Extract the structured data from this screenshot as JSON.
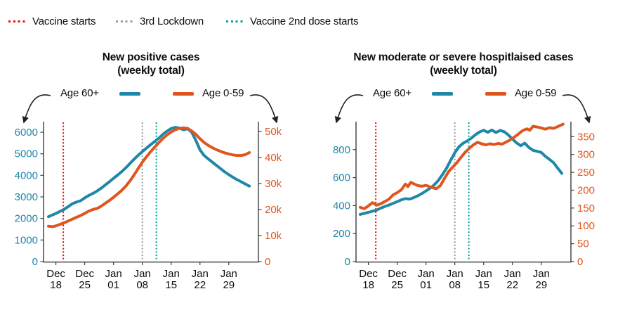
{
  "page": {
    "background": "#ffffff",
    "text_color": "#0d0d0d"
  },
  "top_legend": {
    "items": [
      {
        "label": "Vaccine starts",
        "color": "#e3120b",
        "style": "dotted"
      },
      {
        "label": "3rd Lockdown",
        "color": "#9c9c9c",
        "style": "dotted"
      },
      {
        "label": "Vaccine 2nd dose starts",
        "color": "#00a2a2",
        "style": "dotted"
      }
    ]
  },
  "chart_data": [
    {
      "type": "line",
      "title_line1": "New positive cases",
      "title_line2": "(weekly total)",
      "x_tick_labels": [
        [
          "Dec",
          "18"
        ],
        [
          "Dec",
          "25"
        ],
        [
          "Jan",
          "01"
        ],
        [
          "Jan",
          "08"
        ],
        [
          "Jan",
          "15"
        ],
        [
          "Jan",
          "22"
        ],
        [
          "Jan",
          "29"
        ]
      ],
      "x_tick_days": [
        0,
        7,
        14,
        21,
        28,
        35,
        42
      ],
      "x_domain": [
        -3,
        49.2
      ],
      "left_axis": {
        "color": "#1f87a8",
        "top_value": 6490,
        "ticks": [
          {
            "v": 0,
            "label": "0"
          },
          {
            "v": 1000,
            "label": "1000"
          },
          {
            "v": 2000,
            "label": "2000"
          },
          {
            "v": 3000,
            "label": "3000"
          },
          {
            "v": 4000,
            "label": "4000"
          },
          {
            "v": 5000,
            "label": "5000"
          },
          {
            "v": 6000,
            "label": "6000"
          }
        ]
      },
      "right_axis": {
        "color": "#de561e",
        "top_value": 53800,
        "ticks": [
          {
            "v": 0,
            "label": "0"
          },
          {
            "v": 10000,
            "label": "10k"
          },
          {
            "v": 20000,
            "label": "20k"
          },
          {
            "v": 30000,
            "label": "30k"
          },
          {
            "v": 40000,
            "label": "40k"
          },
          {
            "v": 50000,
            "label": "50k"
          }
        ]
      },
      "vlines": [
        {
          "name": "Vaccine starts",
          "day": 1.8,
          "color": "#e3120b"
        },
        {
          "name": "3rd Lockdown",
          "day": 21,
          "color": "#9c9c9c"
        },
        {
          "name": "Vaccine 2nd dose starts",
          "day": 24.4,
          "color": "#00a2a2"
        }
      ],
      "series": [
        {
          "name": "Age 60+",
          "axis": "left",
          "color": "#1f87a8",
          "points": [
            [
              -1.8,
              2080
            ],
            [
              0,
              2230
            ],
            [
              1,
              2330
            ],
            [
              2,
              2420
            ],
            [
              3,
              2550
            ],
            [
              4,
              2680
            ],
            [
              5,
              2760
            ],
            [
              6,
              2820
            ],
            [
              7,
              2950
            ],
            [
              8,
              3070
            ],
            [
              9,
              3160
            ],
            [
              10,
              3270
            ],
            [
              11,
              3400
            ],
            [
              12,
              3550
            ],
            [
              13,
              3700
            ],
            [
              14,
              3860
            ],
            [
              15,
              4010
            ],
            [
              16,
              4170
            ],
            [
              17,
              4350
            ],
            [
              18,
              4550
            ],
            [
              19,
              4750
            ],
            [
              20,
              4930
            ],
            [
              21,
              5100
            ],
            [
              22,
              5260
            ],
            [
              23,
              5420
            ],
            [
              24,
              5570
            ],
            [
              25,
              5720
            ],
            [
              26,
              5900
            ],
            [
              27,
              6050
            ],
            [
              28,
              6170
            ],
            [
              29,
              6230
            ],
            [
              30,
              6190
            ],
            [
              31,
              6110
            ],
            [
              32,
              6160
            ],
            [
              33,
              6000
            ],
            [
              34,
              5620
            ],
            [
              35,
              5180
            ],
            [
              36,
              4920
            ],
            [
              37,
              4760
            ],
            [
              38,
              4610
            ],
            [
              39,
              4460
            ],
            [
              40,
              4310
            ],
            [
              41,
              4160
            ],
            [
              42,
              4030
            ],
            [
              43,
              3910
            ],
            [
              44,
              3800
            ],
            [
              45,
              3700
            ],
            [
              46,
              3600
            ],
            [
              47,
              3500
            ]
          ]
        },
        {
          "name": "Age 0-59",
          "axis": "right",
          "color": "#de561e",
          "points": [
            [
              -1.8,
              13600
            ],
            [
              -0.8,
              13400
            ],
            [
              0,
              13700
            ],
            [
              1,
              14300
            ],
            [
              2,
              14900
            ],
            [
              3,
              15600
            ],
            [
              4,
              16300
            ],
            [
              5,
              17000
            ],
            [
              6,
              17700
            ],
            [
              7,
              18500
            ],
            [
              8,
              19400
            ],
            [
              9,
              20000
            ],
            [
              10,
              20400
            ],
            [
              11,
              21300
            ],
            [
              12,
              22400
            ],
            [
              13,
              23500
            ],
            [
              14,
              24700
            ],
            [
              15,
              26000
            ],
            [
              16,
              27400
            ],
            [
              17,
              29000
            ],
            [
              18,
              31000
            ],
            [
              19,
              33300
            ],
            [
              20,
              35800
            ],
            [
              21,
              38200
            ],
            [
              22,
              40300
            ],
            [
              23,
              42200
            ],
            [
              24,
              44000
            ],
            [
              25,
              45700
            ],
            [
              26,
              47300
            ],
            [
              27,
              48700
            ],
            [
              28,
              49800
            ],
            [
              29,
              50700
            ],
            [
              30,
              51200
            ],
            [
              31,
              51400
            ],
            [
              32,
              51200
            ],
            [
              33,
              50200
            ],
            [
              34,
              48900
            ],
            [
              35,
              47200
            ],
            [
              36,
              45800
            ],
            [
              37,
              44700
            ],
            [
              38,
              43800
            ],
            [
              39,
              43000
            ],
            [
              40,
              42400
            ],
            [
              41,
              41800
            ],
            [
              42,
              41400
            ],
            [
              43,
              41000
            ],
            [
              44,
              40800
            ],
            [
              45,
              40800
            ],
            [
              46,
              41100
            ],
            [
              47,
              41900
            ]
          ]
        }
      ]
    },
    {
      "type": "line",
      "title_line1": "New moderate or severe hospitlaised cases",
      "title_line2": "(weekly total)",
      "x_tick_labels": [
        [
          "Dec",
          "18"
        ],
        [
          "Dec",
          "25"
        ],
        [
          "Jan",
          "01"
        ],
        [
          "Jan",
          "08"
        ],
        [
          "Jan",
          "15"
        ],
        [
          "Jan",
          "22"
        ],
        [
          "Jan",
          "29"
        ]
      ],
      "x_tick_days": [
        0,
        7,
        14,
        21,
        28,
        35,
        42
      ],
      "x_domain": [
        -3,
        49.2
      ],
      "left_axis": {
        "color": "#1f87a8",
        "top_value": 1000,
        "ticks": [
          {
            "v": 0,
            "label": "0"
          },
          {
            "v": 200,
            "label": "200"
          },
          {
            "v": 400,
            "label": "400"
          },
          {
            "v": 600,
            "label": "600"
          },
          {
            "v": 800,
            "label": "800"
          }
        ]
      },
      "right_axis": {
        "color": "#de561e",
        "top_value": 392,
        "ticks": [
          {
            "v": 0,
            "label": "0"
          },
          {
            "v": 50,
            "label": "50"
          },
          {
            "v": 100,
            "label": "100"
          },
          {
            "v": 150,
            "label": "150"
          },
          {
            "v": 200,
            "label": "200"
          },
          {
            "v": 250,
            "label": "250"
          },
          {
            "v": 300,
            "label": "300"
          },
          {
            "v": 350,
            "label": "350"
          }
        ]
      },
      "vlines": [
        {
          "name": "Vaccine starts",
          "day": 1.8,
          "color": "#e3120b"
        },
        {
          "name": "3rd Lockdown",
          "day": 21,
          "color": "#9c9c9c"
        },
        {
          "name": "Vaccine 2nd dose starts",
          "day": 24.4,
          "color": "#00a2a2"
        }
      ],
      "series": [
        {
          "name": "Age 60+",
          "axis": "left",
          "color": "#1f87a8",
          "points": [
            [
              -2,
              337
            ],
            [
              0,
              352
            ],
            [
              1,
              360
            ],
            [
              2,
              368
            ],
            [
              3,
              382
            ],
            [
              4,
              394
            ],
            [
              5,
              404
            ],
            [
              6,
              416
            ],
            [
              7,
              428
            ],
            [
              8,
              441
            ],
            [
              9,
              450
            ],
            [
              10,
              446
            ],
            [
              11,
              457
            ],
            [
              12,
              470
            ],
            [
              13,
              486
            ],
            [
              14,
              505
            ],
            [
              15,
              524
            ],
            [
              16,
              548
            ],
            [
              17,
              580
            ],
            [
              18,
              622
            ],
            [
              19,
              668
            ],
            [
              20,
              724
            ],
            [
              21,
              778
            ],
            [
              22,
              820
            ],
            [
              23,
              845
            ],
            [
              24,
              862
            ],
            [
              25,
              882
            ],
            [
              26,
              906
            ],
            [
              27,
              926
            ],
            [
              28,
              938
            ],
            [
              29,
              924
            ],
            [
              30,
              940
            ],
            [
              31,
              922
            ],
            [
              32,
              937
            ],
            [
              33,
              928
            ],
            [
              34,
              905
            ],
            [
              35,
              875
            ],
            [
              36,
              848
            ],
            [
              37,
              828
            ],
            [
              38,
              846
            ],
            [
              39,
              815
            ],
            [
              40,
              795
            ],
            [
              41,
              788
            ],
            [
              42,
              780
            ],
            [
              43,
              752
            ],
            [
              44,
              730
            ],
            [
              45,
              706
            ],
            [
              46,
              668
            ],
            [
              47,
              630
            ]
          ]
        },
        {
          "name": "Age 0-59",
          "axis": "right",
          "color": "#de561e",
          "points": [
            [
              -2,
              152
            ],
            [
              -1,
              148
            ],
            [
              0,
              156
            ],
            [
              1,
              165
            ],
            [
              2,
              158
            ],
            [
              3,
              162
            ],
            [
              4,
              168
            ],
            [
              5,
              175
            ],
            [
              6,
              187
            ],
            [
              7,
              193
            ],
            [
              8,
              201
            ],
            [
              9,
              217
            ],
            [
              9.6,
              210
            ],
            [
              10.3,
              222
            ],
            [
              11,
              218
            ],
            [
              12,
              213
            ],
            [
              13,
              211
            ],
            [
              14,
              214
            ],
            [
              15,
              209
            ],
            [
              16.5,
              204
            ],
            [
              17.5,
              213
            ],
            [
              18.5,
              233
            ],
            [
              19.5,
              252
            ],
            [
              20.5,
              265
            ],
            [
              21.5,
              277
            ],
            [
              22.5,
              292
            ],
            [
              23.5,
              306
            ],
            [
              24.5,
              317
            ],
            [
              25.5,
              327
            ],
            [
              26.5,
              334
            ],
            [
              27.5,
              330
            ],
            [
              28.5,
              327
            ],
            [
              29.5,
              330
            ],
            [
              30.5,
              328
            ],
            [
              31.5,
              331
            ],
            [
              32.5,
              329
            ],
            [
              33.5,
              335
            ],
            [
              34.5,
              341
            ],
            [
              35.5,
              349
            ],
            [
              36.5,
              358
            ],
            [
              37.5,
              367
            ],
            [
              38.5,
              372
            ],
            [
              39.2,
              368
            ],
            [
              40,
              379
            ],
            [
              41,
              377
            ],
            [
              42,
              374
            ],
            [
              43,
              371
            ],
            [
              44,
              375
            ],
            [
              45,
              373
            ],
            [
              46,
              378
            ],
            [
              47.3,
              385
            ]
          ]
        }
      ]
    }
  ]
}
